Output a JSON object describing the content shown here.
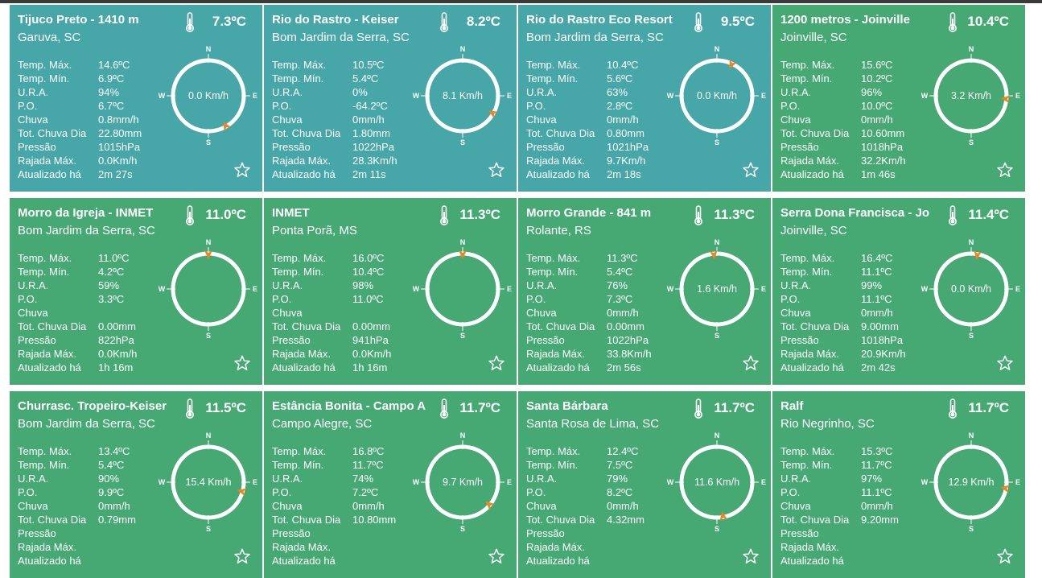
{
  "labels": {
    "tmax": "Temp. Máx.",
    "tmin": "Temp. Mín.",
    "ura": "U.R.A.",
    "po": "P.O.",
    "chuva": "Chuva",
    "totchuva": "Tot. Chuva Dia",
    "pressao": "Pressão",
    "rajada": "Rajada Máx.",
    "atualizado": "Atualizado há"
  },
  "compass_labels": {
    "n": "N",
    "s": "S",
    "e": "E",
    "w": "W"
  },
  "colors": {
    "teal": "#47a6a7",
    "green": "#46a872",
    "arrow": "#f5821f"
  },
  "stations": [
    {
      "name": "Tijuco Preto - 1410 m",
      "location": "Garuva, SC",
      "temp": "7.3ºC",
      "tmax": "14.6ºC",
      "tmin": "6.9ºC",
      "ura": "94%",
      "po": "6.7ºC",
      "chuva": "0.8mm/h",
      "totchuva": "22.80mm",
      "pressao": "1015hPa",
      "rajada": "0.0Km/h",
      "atualizado": "2m 27s",
      "wind": "0.0 Km/h",
      "wind_dir_deg": 150,
      "color": "teal"
    },
    {
      "name": "Rio do Rastro - Keiser",
      "location": "Bom Jardim da Serra, SC",
      "temp": "8.2ºC",
      "tmax": "10.5ºC",
      "tmin": "5.4ºC",
      "ura": "0%",
      "po": "-64.2ºC",
      "chuva": "0mm/h",
      "totchuva": "1.80mm",
      "pressao": "1022hPa",
      "rajada": "28.3Km/h",
      "atualizado": "2m 11s",
      "wind": "8.1 Km/h",
      "wind_dir_deg": 120,
      "color": "teal"
    },
    {
      "name": "Rio do Rastro Eco Resort",
      "location": "Bom Jardim da Serra, SC",
      "temp": "9.5ºC",
      "tmax": "10.4ºC",
      "tmin": "5.6ºC",
      "ura": "63%",
      "po": "2.8ºC",
      "chuva": "0mm/h",
      "totchuva": "0.80mm",
      "pressao": "1021hPa",
      "rajada": "9.7Km/h",
      "atualizado": "2m 18s",
      "wind": "0.0 Km/h",
      "wind_dir_deg": 25,
      "color": "teal"
    },
    {
      "name": "1200 metros - Joinville",
      "location": "Joinville, SC",
      "temp": "10.4ºC",
      "tmax": "15.6ºC",
      "tmin": "10.2ºC",
      "ura": "96%",
      "po": "10.0ºC",
      "chuva": "0mm/h",
      "totchuva": "10.60mm",
      "pressao": "1018hPa",
      "rajada": "32.2Km/h",
      "atualizado": "1m 46s",
      "wind": "3.2 Km/h",
      "wind_dir_deg": 95,
      "color": "green"
    },
    {
      "name": "Morro da Igreja - INMET",
      "location": "Bom Jardim da Serra, SC",
      "temp": "11.0ºC",
      "tmax": "11.0ºC",
      "tmin": "4.2ºC",
      "ura": "59%",
      "po": "3.3ºC",
      "chuva": "",
      "totchuva": "0.00mm",
      "pressao": "822hPa",
      "rajada": "0.0Km/h",
      "atualizado": "1h 16m",
      "wind": "",
      "wind_dir_deg": 0,
      "color": "green"
    },
    {
      "name": "INMET",
      "location": "Ponta Porã, MS",
      "temp": "11.3ºC",
      "tmax": "16.0ºC",
      "tmin": "10.4ºC",
      "ura": "98%",
      "po": "11.0ºC",
      "chuva": "",
      "totchuva": "0.00mm",
      "pressao": "941hPa",
      "rajada": "0.0Km/h",
      "atualizado": "1h 16m",
      "wind": "",
      "wind_dir_deg": 0,
      "color": "green"
    },
    {
      "name": "Morro Grande - 841 m",
      "location": "Rolante, RS",
      "temp": "11.3ºC",
      "tmax": "11.3ºC",
      "tmin": "5.4ºC",
      "ura": "76%",
      "po": "7.3ºC",
      "chuva": "0mm/h",
      "totchuva": "0.00mm",
      "pressao": "1022hPa",
      "rajada": "33.8Km/h",
      "atualizado": "2m 56s",
      "wind": "1.6 Km/h",
      "wind_dir_deg": 355,
      "color": "green"
    },
    {
      "name": "Serra Dona Francisca - Jo",
      "location": "Joinville, SC",
      "temp": "11.4ºC",
      "tmax": "16.4ºC",
      "tmin": "11.1ºC",
      "ura": "99%",
      "po": "11.1ºC",
      "chuva": "0mm/h",
      "totchuva": "9.00mm",
      "pressao": "1018hPa",
      "rajada": "20.9Km/h",
      "atualizado": "2m 42s",
      "wind": "0.0 Km/h",
      "wind_dir_deg": 10,
      "color": "green"
    },
    {
      "name": "Churrasc. Tropeiro-Keiser",
      "location": "Bom Jardim da Serra, SC",
      "temp": "11.5ºC",
      "tmax": "13.4ºC",
      "tmin": "5.4ºC",
      "ura": "90%",
      "po": "9.9ºC",
      "chuva": "0mm/h",
      "totchuva": "0.79mm",
      "pressao": "",
      "rajada": "",
      "atualizado": "",
      "wind": "15.4 Km/h",
      "wind_dir_deg": 105,
      "color": "green"
    },
    {
      "name": "Estância Bonita - Campo A",
      "location": "Campo Alegre, SC",
      "temp": "11.7ºC",
      "tmax": "16.8ºC",
      "tmin": "11.7ºC",
      "ura": "74%",
      "po": "7.2ºC",
      "chuva": "0mm/h",
      "totchuva": "10.80mm",
      "pressao": "",
      "rajada": "",
      "atualizado": "",
      "wind": "9.7 Km/h",
      "wind_dir_deg": 130,
      "color": "green"
    },
    {
      "name": "Santa Bárbara",
      "location": "Santa Rosa de Lima, SC",
      "temp": "11.7ºC",
      "tmax": "12.4ºC",
      "tmin": "7.5ºC",
      "ura": "79%",
      "po": "8.2ºC",
      "chuva": "0mm/h",
      "totchuva": "4.32mm",
      "pressao": "",
      "rajada": "",
      "atualizado": "",
      "wind": "11.6 Km/h",
      "wind_dir_deg": 170,
      "color": "green"
    },
    {
      "name": "Ralf",
      "location": "Rio Negrinho, SC",
      "temp": "11.7ºC",
      "tmax": "15.3ºC",
      "tmin": "11.7ºC",
      "ura": "97%",
      "po": "11.1ºC",
      "chuva": "0mm/h",
      "totchuva": "9.20mm",
      "pressao": "",
      "rajada": "",
      "atualizado": "",
      "wind": "12.9 Km/h",
      "wind_dir_deg": 100,
      "color": "green"
    }
  ]
}
